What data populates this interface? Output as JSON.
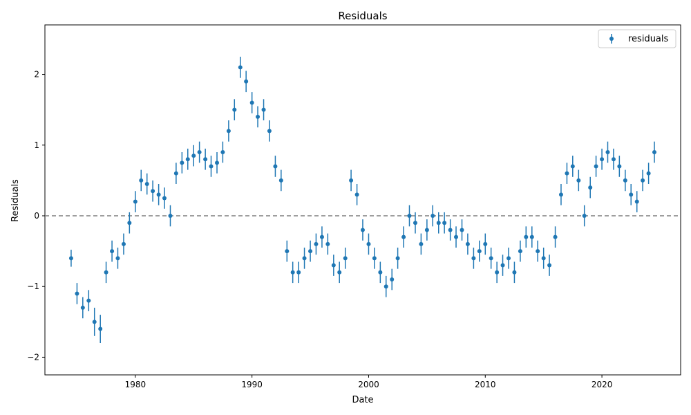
{
  "chart_data": {
    "type": "scatter",
    "title": "Residuals",
    "xlabel": "Date",
    "ylabel": "Residuals",
    "x_ticks": [
      "1980",
      "1990",
      "2000",
      "2010",
      "2020"
    ],
    "y_ticks": [
      "−2",
      "−1",
      "0",
      "1",
      "2"
    ],
    "xlim": [
      "1972-04-01",
      "2026-10-01"
    ],
    "ylim": [
      -2.25,
      2.7
    ],
    "grid": false,
    "legend": {
      "position": "top-right",
      "entries": [
        "residuals"
      ]
    },
    "reference_line": {
      "y": 0,
      "style": "dashed",
      "color": "#7f7f7f"
    },
    "colors": {
      "series": "#1f77b4",
      "reference": "#7f7f7f"
    },
    "series": [
      {
        "name": "residuals",
        "x": [
          "1974-07-01",
          "1975-01-01",
          "1975-07-01",
          "1976-01-01",
          "1976-07-01",
          "1977-01-01",
          "1977-07-01",
          "1978-01-01",
          "1978-07-01",
          "1979-01-01",
          "1979-07-01",
          "1980-01-01",
          "1980-07-01",
          "1981-01-01",
          "1981-07-01",
          "1982-01-01",
          "1982-07-01",
          "1983-01-01",
          "1983-07-01",
          "1984-01-01",
          "1984-07-01",
          "1985-01-01",
          "1985-07-01",
          "1986-01-01",
          "1986-07-01",
          "1987-01-01",
          "1987-07-01",
          "1988-01-01",
          "1988-07-01",
          "1989-01-01",
          "1989-07-01",
          "1990-01-01",
          "1990-07-01",
          "1991-01-01",
          "1991-07-01",
          "1992-01-01",
          "1992-07-01",
          "1993-01-01",
          "1993-07-01",
          "1994-01-01",
          "1994-07-01",
          "1995-01-01",
          "1995-07-01",
          "1996-01-01",
          "1996-07-01",
          "1997-01-01",
          "1997-07-01",
          "1998-01-01",
          "1998-07-01",
          "1999-01-01",
          "1999-07-01",
          "2000-01-01",
          "2000-07-01",
          "2001-01-01",
          "2001-07-01",
          "2002-01-01",
          "2002-07-01",
          "2003-01-01",
          "2003-07-01",
          "2004-01-01",
          "2004-07-01",
          "2005-01-01",
          "2005-07-01",
          "2006-01-01",
          "2006-07-01",
          "2007-01-01",
          "2007-07-01",
          "2008-01-01",
          "2008-07-01",
          "2009-01-01",
          "2009-07-01",
          "2010-01-01",
          "2010-07-01",
          "2011-01-01",
          "2011-07-01",
          "2012-01-01",
          "2012-07-01",
          "2013-01-01",
          "2013-07-01",
          "2014-01-01",
          "2014-07-01",
          "2015-01-01",
          "2015-07-01",
          "2016-01-01",
          "2016-07-01",
          "2017-01-01",
          "2017-07-01",
          "2018-01-01",
          "2018-07-01",
          "2019-01-01",
          "2019-07-01",
          "2020-01-01",
          "2020-07-01",
          "2021-01-01",
          "2021-07-01",
          "2022-01-01",
          "2022-07-01",
          "2023-01-01",
          "2023-07-01",
          "2024-01-01",
          "2024-07-01"
        ],
        "y": [
          -0.6,
          -1.1,
          -1.3,
          -1.2,
          -1.5,
          -1.6,
          -0.8,
          -0.5,
          -0.6,
          -0.4,
          -0.1,
          0.2,
          0.5,
          0.45,
          0.35,
          0.3,
          0.25,
          0.0,
          0.6,
          0.75,
          0.8,
          0.85,
          0.9,
          0.8,
          0.7,
          0.75,
          0.9,
          1.2,
          1.5,
          2.1,
          1.9,
          1.6,
          1.4,
          1.5,
          1.2,
          0.7,
          0.5,
          -0.5,
          -0.8,
          -0.8,
          -0.6,
          -0.5,
          -0.4,
          -0.3,
          -0.4,
          -0.7,
          -0.8,
          -0.6,
          0.5,
          0.3,
          -0.2,
          -0.4,
          -0.6,
          -0.8,
          -1.0,
          -0.9,
          -0.6,
          -0.3,
          0.0,
          -0.1,
          -0.4,
          -0.2,
          0.0,
          -0.1,
          -0.1,
          -0.2,
          -0.3,
          -0.2,
          -0.4,
          -0.6,
          -0.5,
          -0.4,
          -0.6,
          -0.8,
          -0.7,
          -0.6,
          -0.8,
          -0.5,
          -0.3,
          -0.3,
          -0.5,
          -0.6,
          -0.7,
          -0.3,
          0.3,
          0.6,
          0.7,
          0.5,
          0.0,
          0.4,
          0.7,
          0.8,
          0.9,
          0.8,
          0.7,
          0.5,
          0.3,
          0.2,
          0.5,
          0.6,
          0.9
        ],
        "yerr": [
          0.12,
          0.15,
          0.15,
          0.15,
          0.2,
          0.2,
          0.15,
          0.15,
          0.15,
          0.15,
          0.15,
          0.15,
          0.15,
          0.15,
          0.15,
          0.15,
          0.15,
          0.15,
          0.15,
          0.15,
          0.15,
          0.15,
          0.15,
          0.15,
          0.15,
          0.15,
          0.15,
          0.15,
          0.15,
          0.15,
          0.15,
          0.15,
          0.15,
          0.15,
          0.15,
          0.15,
          0.15,
          0.15,
          0.15,
          0.15,
          0.15,
          0.15,
          0.15,
          0.15,
          0.15,
          0.15,
          0.15,
          0.15,
          0.15,
          0.15,
          0.15,
          0.15,
          0.15,
          0.15,
          0.15,
          0.15,
          0.15,
          0.15,
          0.15,
          0.15,
          0.15,
          0.15,
          0.15,
          0.15,
          0.15,
          0.15,
          0.15,
          0.15,
          0.15,
          0.15,
          0.15,
          0.15,
          0.15,
          0.15,
          0.15,
          0.15,
          0.15,
          0.15,
          0.15,
          0.15,
          0.15,
          0.15,
          0.15,
          0.15,
          0.15,
          0.15,
          0.15,
          0.15,
          0.15,
          0.15,
          0.15,
          0.15,
          0.15,
          0.15,
          0.15,
          0.15,
          0.15,
          0.15,
          0.15,
          0.15,
          0.15
        ]
      }
    ]
  }
}
